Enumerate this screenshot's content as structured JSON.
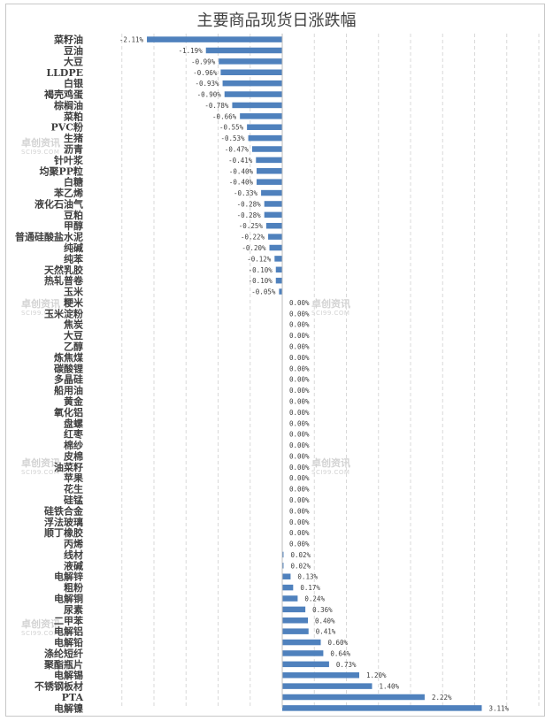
{
  "chart_data": {
    "type": "bar",
    "orientation": "horizontal",
    "title": "主要商品现货日涨跌幅",
    "xlabel": "",
    "ylabel": "",
    "xlim": [
      -2.5,
      4.0
    ],
    "grid": true,
    "value_suffix": "%",
    "categories": [
      "菜籽油",
      "豆油",
      "大豆",
      "LLDPE",
      "白银",
      "褐壳鸡蛋",
      "棕榈油",
      "菜粕",
      "PVC粉",
      "生猪",
      "沥青",
      "针叶浆",
      "均聚PP粒",
      "白糖",
      "苯乙烯",
      "液化石油气",
      "豆粕",
      "甲醇",
      "普通硅酸盐水泥",
      "纯碱",
      "纯苯",
      "天然乳胶",
      "热轧普卷",
      "玉米",
      "粳米",
      "玉米淀粉",
      "焦炭",
      "大豆",
      "乙醇",
      "炼焦煤",
      "碳酸锂",
      "多晶硅",
      "船用油",
      "黄金",
      "氧化铝",
      "盘螺",
      "红枣",
      "棉纱",
      "皮棉",
      "油菜籽",
      "苹果",
      "花生",
      "硅锰",
      "硅铁合金",
      "浮法玻璃",
      "顺丁橡胶",
      "丙烯",
      "线材",
      "液碱",
      "电解锌",
      "粗粉",
      "电解铜",
      "尿素",
      "二甲苯",
      "电解铝",
      "电解铅",
      "涤纶短纤",
      "聚酯瓶片",
      "电解锡",
      "不锈钢板材",
      "PTA",
      "电解镍"
    ],
    "values": [
      -2.11,
      -1.19,
      -0.99,
      -0.96,
      -0.93,
      -0.9,
      -0.78,
      -0.66,
      -0.55,
      -0.53,
      -0.47,
      -0.41,
      -0.4,
      -0.4,
      -0.33,
      -0.28,
      -0.28,
      -0.25,
      -0.22,
      -0.2,
      -0.12,
      -0.1,
      -0.1,
      -0.05,
      0.0,
      0.0,
      0.0,
      0.0,
      0.0,
      0.0,
      0.0,
      0.0,
      0.0,
      0.0,
      0.0,
      0.0,
      0.0,
      0.0,
      0.0,
      0.0,
      0.0,
      0.0,
      0.0,
      0.0,
      0.0,
      0.0,
      0.0,
      0.02,
      0.02,
      0.13,
      0.17,
      0.24,
      0.36,
      0.4,
      0.41,
      0.6,
      0.64,
      0.73,
      1.2,
      1.4,
      2.22,
      3.11
    ],
    "labels": [
      "-2.11%",
      "-1.19%",
      "-0.99%",
      "-0.96%",
      "-0.93%",
      "-0.90%",
      "-0.78%",
      "-0.66%",
      "-0.55%",
      "-0.53%",
      "-0.47%",
      "-0.41%",
      "-0.40%",
      "-0.40%",
      "-0.33%",
      "-0.28%",
      "-0.28%",
      "-0.25%",
      "-0.22%",
      "-0.20%",
      "-0.12%",
      "-0.10%",
      "-0.10%",
      "-0.05%",
      "0.00%",
      "0.00%",
      "0.00%",
      "0.00%",
      "0.00%",
      "0.00%",
      "0.00%",
      "0.00%",
      "0.00%",
      "0.00%",
      "0.00%",
      "0.00%",
      "0.00%",
      "0.00%",
      "0.00%",
      "0.00%",
      "0.00%",
      "0.00%",
      "0.00%",
      "0.00%",
      "0.00%",
      "0.00%",
      "0.00%",
      "0.02%",
      "0.02%",
      "0.13%",
      "0.17%",
      "0.24%",
      "0.36%",
      "0.40%",
      "0.41%",
      "0.60%",
      "0.64%",
      "0.73%",
      "1.20%",
      "1.40%",
      "2.22%",
      "3.11%"
    ],
    "bar_color": "#4f81bd"
  },
  "watermark": {
    "text": "卓创资讯",
    "subtext": "SCI99.COM"
  }
}
